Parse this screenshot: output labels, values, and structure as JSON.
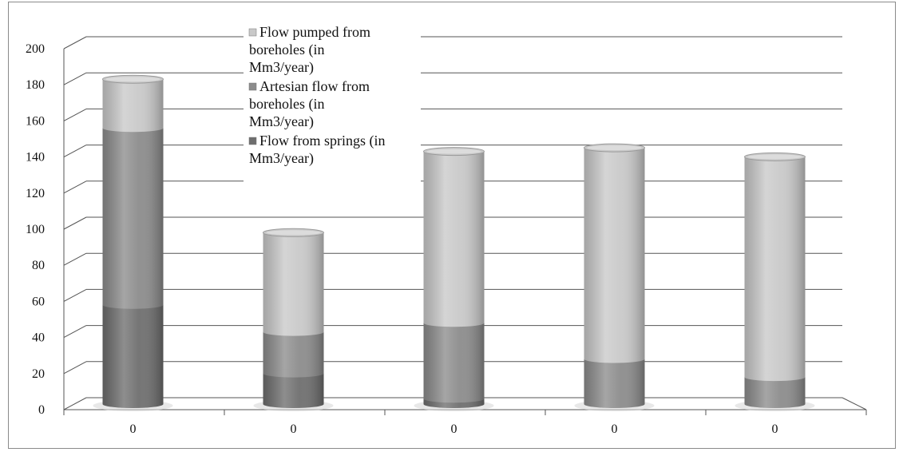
{
  "chart_data": {
    "type": "bar",
    "stacked": true,
    "style": "3d-cylinder",
    "categories": [
      "0",
      "0",
      "0",
      "0",
      "0"
    ],
    "series": [
      {
        "name": "Flow from springs (in Mm3/year)",
        "color": "#6e6e6e",
        "values": [
          55,
          17,
          3,
          0,
          0
        ]
      },
      {
        "name": "Artesian flow from boreholes (in Mm3/year)",
        "color": "#8c8c8c",
        "values": [
          98,
          23,
          42,
          25,
          15
        ]
      },
      {
        "name": "Flow pumped from boreholes (in Mm3/year)",
        "color": "#c9c9c9",
        "values": [
          27,
          55,
          95,
          117,
          122
        ]
      }
    ],
    "ylim": [
      0,
      200
    ],
    "yticks": [
      0,
      20,
      40,
      60,
      80,
      100,
      120,
      140,
      160,
      180,
      200
    ],
    "grid": true,
    "legend_position": "top-left-inside",
    "legend_order": [
      2,
      1,
      0
    ]
  }
}
